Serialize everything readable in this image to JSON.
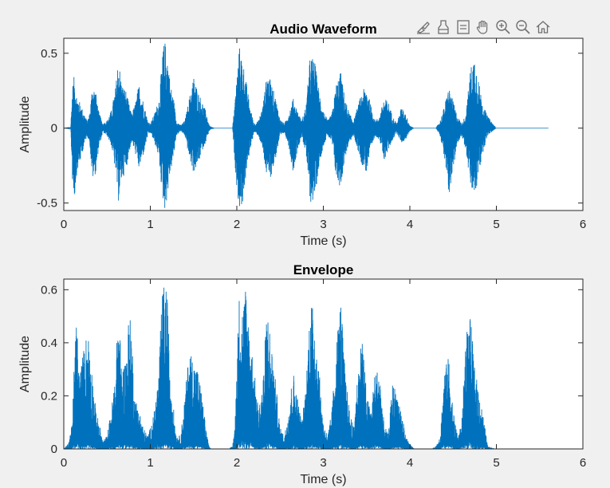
{
  "toolbar": {
    "icons": [
      "brush-icon",
      "insert-legend-icon",
      "data-tips-icon",
      "pan-hand-icon",
      "zoom-in-icon",
      "zoom-out-icon",
      "home-icon"
    ]
  },
  "colors": {
    "series": "#0072BD",
    "axes_bg": "#ffffff",
    "figure_bg": "#f0f0f0",
    "axis": "#262626"
  },
  "chart_data": [
    {
      "type": "line",
      "title": "Audio Waveform",
      "xlabel": "Time (s)",
      "ylabel": "Amplitude",
      "xlim": [
        0,
        6
      ],
      "ylim": [
        -0.55,
        0.6
      ],
      "xticks": [
        0,
        1,
        2,
        3,
        4,
        5,
        6
      ],
      "xtick_labels": [
        "0",
        "1",
        "2",
        "3",
        "4",
        "5",
        "6"
      ],
      "yticks": [
        -0.5,
        0,
        0.5
      ],
      "ytick_labels": [
        "-0.5",
        "0",
        "0.5"
      ],
      "grid": false,
      "series": [
        {
          "envelope_x": [
            0,
            0.08,
            0.1,
            0.12,
            0.15,
            0.18,
            0.22,
            0.27,
            0.3,
            0.33,
            0.37,
            0.4,
            0.45,
            0.5,
            0.55,
            0.6,
            0.63,
            0.67,
            0.72,
            0.75,
            0.78,
            0.82,
            0.87,
            0.92,
            0.97,
            1.0,
            1.05,
            1.1,
            1.13,
            1.15,
            1.17,
            1.2,
            1.23,
            1.27,
            1.3,
            1.35,
            1.4,
            1.45,
            1.5,
            1.55,
            1.6,
            1.65,
            1.68,
            1.7,
            1.75,
            1.8,
            1.85,
            1.9,
            1.95,
            1.98,
            2.0,
            2.03,
            2.07,
            2.1,
            2.15,
            2.2,
            2.25,
            2.3,
            2.35,
            2.4,
            2.45,
            2.5,
            2.55,
            2.6,
            2.65,
            2.7,
            2.75,
            2.8,
            2.85,
            2.9,
            2.95,
            3.0,
            3.05,
            3.1,
            3.15,
            3.2,
            3.25,
            3.3,
            3.35,
            3.4,
            3.45,
            3.5,
            3.55,
            3.6,
            3.65,
            3.7,
            3.75,
            3.8,
            3.85,
            3.9,
            3.95,
            4.0,
            4.05,
            4.1,
            4.15,
            4.2,
            4.25,
            4.3,
            4.35,
            4.4,
            4.45,
            4.5,
            4.55,
            4.6,
            4.65,
            4.7,
            4.75,
            4.8,
            4.85,
            4.9,
            5.0,
            5.6
          ],
          "envelope_pos": [
            0.0,
            0.01,
            0.28,
            0.35,
            0.22,
            0.18,
            0.12,
            0.05,
            0.1,
            0.3,
            0.25,
            0.12,
            0.03,
            0.05,
            0.12,
            0.28,
            0.48,
            0.3,
            0.25,
            0.17,
            0.1,
            0.15,
            0.3,
            0.18,
            0.05,
            0.03,
            0.1,
            0.2,
            0.4,
            0.55,
            0.58,
            0.5,
            0.3,
            0.2,
            0.05,
            0.02,
            0.05,
            0.2,
            0.35,
            0.25,
            0.18,
            0.1,
            0.02,
            0.01,
            0.0,
            0.0,
            0.0,
            0.0,
            0.0,
            0.2,
            0.35,
            0.55,
            0.45,
            0.35,
            0.15,
            0.03,
            0.05,
            0.15,
            0.38,
            0.3,
            0.2,
            0.06,
            0.03,
            0.1,
            0.2,
            0.12,
            0.05,
            0.15,
            0.5,
            0.45,
            0.25,
            0.12,
            0.05,
            0.1,
            0.3,
            0.38,
            0.2,
            0.1,
            0.05,
            0.15,
            0.25,
            0.28,
            0.15,
            0.05,
            0.08,
            0.2,
            0.18,
            0.08,
            0.03,
            0.14,
            0.1,
            0.02,
            0.0,
            0.0,
            0.0,
            0.0,
            0.0,
            0.0,
            0.05,
            0.15,
            0.28,
            0.18,
            0.08,
            0.03,
            0.1,
            0.4,
            0.5,
            0.3,
            0.15,
            0.08,
            0.0,
            0.0
          ],
          "envelope_neg": [
            0.0,
            0.01,
            0.35,
            0.5,
            0.3,
            0.25,
            0.15,
            0.05,
            0.1,
            0.35,
            0.3,
            0.15,
            0.03,
            0.05,
            0.12,
            0.3,
            0.5,
            0.35,
            0.28,
            0.18,
            0.1,
            0.15,
            0.28,
            0.18,
            0.05,
            0.03,
            0.1,
            0.2,
            0.4,
            0.5,
            0.55,
            0.45,
            0.3,
            0.2,
            0.05,
            0.02,
            0.05,
            0.2,
            0.3,
            0.25,
            0.15,
            0.08,
            0.02,
            0.01,
            0.0,
            0.0,
            0.0,
            0.0,
            0.0,
            0.25,
            0.4,
            0.55,
            0.5,
            0.35,
            0.15,
            0.03,
            0.05,
            0.15,
            0.35,
            0.32,
            0.2,
            0.06,
            0.03,
            0.12,
            0.3,
            0.15,
            0.05,
            0.18,
            0.5,
            0.48,
            0.25,
            0.12,
            0.05,
            0.1,
            0.35,
            0.4,
            0.2,
            0.1,
            0.05,
            0.15,
            0.25,
            0.3,
            0.15,
            0.05,
            0.08,
            0.22,
            0.15,
            0.08,
            0.03,
            0.1,
            0.08,
            0.02,
            0.0,
            0.0,
            0.0,
            0.0,
            0.0,
            0.0,
            0.05,
            0.2,
            0.45,
            0.3,
            0.1,
            0.05,
            0.15,
            0.4,
            0.48,
            0.3,
            0.15,
            0.05,
            0.0,
            0.0
          ],
          "x_end": 5.6
        }
      ]
    },
    {
      "type": "line",
      "title": "Envelope",
      "xlabel": "Time (s)",
      "ylabel": "Amplitude",
      "xlim": [
        0,
        6
      ],
      "ylim": [
        0,
        0.64
      ],
      "xticks": [
        0,
        1,
        2,
        3,
        4,
        5,
        6
      ],
      "xtick_labels": [
        "0",
        "1",
        "2",
        "3",
        "4",
        "5",
        "6"
      ],
      "yticks": [
        0,
        0.2,
        0.4,
        0.6
      ],
      "ytick_labels": [
        "0",
        "0.2",
        "0.4",
        "0.6"
      ],
      "grid": false,
      "series": [
        {
          "envelope_x": [
            0,
            0.05,
            0.1,
            0.12,
            0.15,
            0.18,
            0.22,
            0.27,
            0.3,
            0.33,
            0.37,
            0.42,
            0.45,
            0.5,
            0.55,
            0.6,
            0.63,
            0.67,
            0.72,
            0.75,
            0.78,
            0.82,
            0.87,
            0.92,
            0.97,
            1.0,
            1.05,
            1.1,
            1.13,
            1.15,
            1.18,
            1.2,
            1.23,
            1.27,
            1.3,
            1.35,
            1.4,
            1.45,
            1.5,
            1.55,
            1.6,
            1.65,
            1.68,
            1.7,
            1.75,
            1.8,
            1.85,
            1.9,
            1.95,
            1.98,
            2.0,
            2.03,
            2.07,
            2.1,
            2.15,
            2.2,
            2.25,
            2.3,
            2.35,
            2.4,
            2.45,
            2.5,
            2.55,
            2.6,
            2.65,
            2.7,
            2.75,
            2.8,
            2.85,
            2.9,
            2.95,
            3.0,
            3.05,
            3.1,
            3.15,
            3.2,
            3.25,
            3.3,
            3.35,
            3.4,
            3.45,
            3.5,
            3.55,
            3.6,
            3.65,
            3.7,
            3.75,
            3.8,
            3.85,
            3.9,
            3.95,
            4.0,
            4.05,
            4.1,
            4.15,
            4.2,
            4.25,
            4.3,
            4.35,
            4.4,
            4.45,
            4.5,
            4.55,
            4.6,
            4.65,
            4.7,
            4.75,
            4.8,
            4.85,
            4.9,
            5.0,
            5.6
          ],
          "envelope_top": [
            0.0,
            0.02,
            0.1,
            0.35,
            0.5,
            0.28,
            0.36,
            0.45,
            0.42,
            0.28,
            0.15,
            0.08,
            0.03,
            0.05,
            0.15,
            0.3,
            0.55,
            0.3,
            0.35,
            0.5,
            0.48,
            0.2,
            0.15,
            0.08,
            0.05,
            0.08,
            0.15,
            0.3,
            0.55,
            0.62,
            0.63,
            0.55,
            0.3,
            0.15,
            0.05,
            0.05,
            0.2,
            0.38,
            0.34,
            0.3,
            0.2,
            0.06,
            0.01,
            0.0,
            0.0,
            0.0,
            0.0,
            0.0,
            0.01,
            0.1,
            0.35,
            0.6,
            0.55,
            0.62,
            0.45,
            0.3,
            0.15,
            0.25,
            0.55,
            0.4,
            0.25,
            0.08,
            0.05,
            0.15,
            0.3,
            0.2,
            0.1,
            0.25,
            0.58,
            0.5,
            0.3,
            0.1,
            0.05,
            0.15,
            0.4,
            0.58,
            0.3,
            0.15,
            0.08,
            0.3,
            0.45,
            0.2,
            0.15,
            0.3,
            0.3,
            0.1,
            0.05,
            0.25,
            0.22,
            0.15,
            0.05,
            0.02,
            0.0,
            0.0,
            0.0,
            0.0,
            0.0,
            0.01,
            0.05,
            0.3,
            0.35,
            0.15,
            0.05,
            0.1,
            0.45,
            0.5,
            0.3,
            0.22,
            0.12,
            0.01,
            0.0,
            0.0
          ],
          "envelope_bottom": [
            0.0,
            0.0,
            0.01,
            0.02,
            0.05,
            0.02,
            0.02,
            0.02,
            0.02,
            0.01,
            0.01,
            0.0,
            0.0,
            0.0,
            0.01,
            0.02,
            0.03,
            0.02,
            0.02,
            0.03,
            0.02,
            0.01,
            0.01,
            0.0,
            0.0,
            0.0,
            0.01,
            0.02,
            0.03,
            0.04,
            0.04,
            0.03,
            0.02,
            0.01,
            0.0,
            0.0,
            0.01,
            0.02,
            0.02,
            0.02,
            0.01,
            0.0,
            0.0,
            0.0,
            0.0,
            0.0,
            0.0,
            0.0,
            0.0,
            0.0,
            0.02,
            0.04,
            0.03,
            0.04,
            0.03,
            0.02,
            0.01,
            0.01,
            0.03,
            0.02,
            0.01,
            0.0,
            0.0,
            0.01,
            0.02,
            0.01,
            0.0,
            0.01,
            0.03,
            0.03,
            0.02,
            0.0,
            0.0,
            0.01,
            0.02,
            0.03,
            0.02,
            0.01,
            0.0,
            0.02,
            0.02,
            0.01,
            0.01,
            0.02,
            0.02,
            0.0,
            0.0,
            0.01,
            0.01,
            0.01,
            0.0,
            0.0,
            0.0,
            0.0,
            0.0,
            0.0,
            0.0,
            0.0,
            0.0,
            0.02,
            0.02,
            0.01,
            0.0,
            0.01,
            0.03,
            0.03,
            0.02,
            0.01,
            0.01,
            0.0,
            0.0,
            0.0
          ],
          "x_end": 5.6
        }
      ]
    }
  ]
}
